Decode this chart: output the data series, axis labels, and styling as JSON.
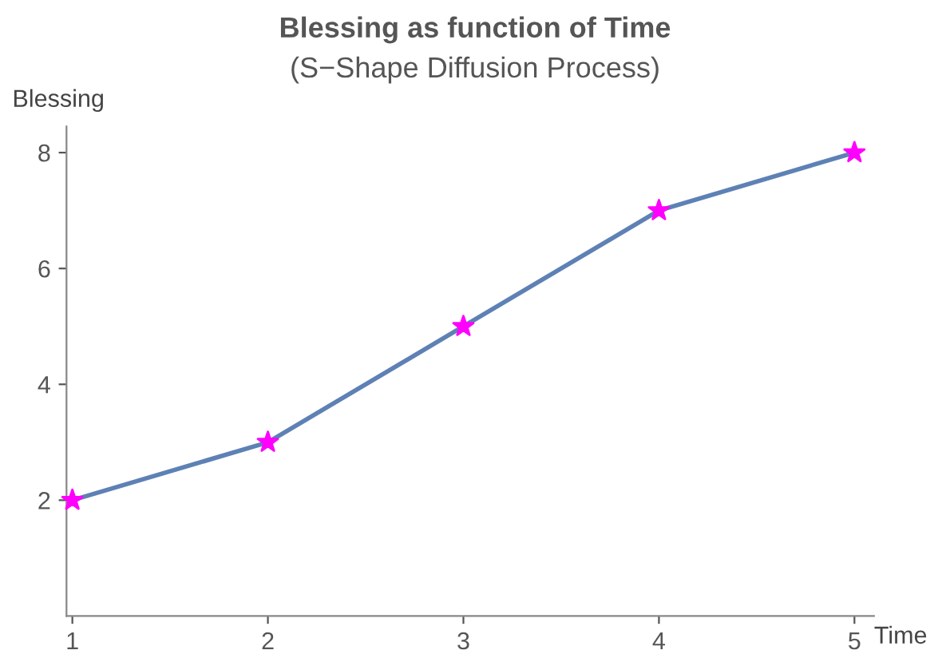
{
  "chart_data": {
    "type": "line",
    "title": "Blessing as function of Time",
    "subtitle": "(S−Shape Diffusion Process)",
    "xlabel": "Time",
    "ylabel": "Blessing",
    "x": [
      1,
      2,
      3,
      4,
      5
    ],
    "series": [
      {
        "color": "#5e81b5",
        "values": [
          2,
          3,
          5,
          7,
          8
        ],
        "marker": "none"
      },
      {
        "type": "scatter",
        "color": "#ff00ff",
        "values": [
          2,
          3,
          5,
          7,
          8
        ],
        "marker": "star"
      }
    ],
    "xlim": [
      0.97,
      5.1
    ],
    "ylim": [
      0,
      8.45
    ],
    "xticks": [
      1,
      2,
      3,
      4,
      5
    ],
    "yticks": [
      2,
      4,
      6,
      8
    ],
    "grid": false,
    "legend": false
  }
}
